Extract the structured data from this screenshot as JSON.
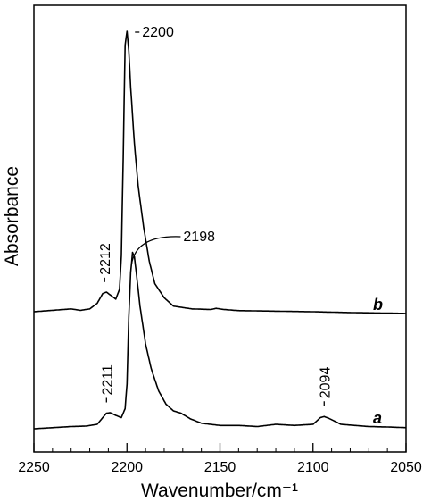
{
  "chart_data": {
    "type": "line",
    "xlabel": "Wavenumber/cm⁻¹",
    "ylabel": "Absorbance",
    "xlim": [
      2250,
      2050
    ],
    "x_reversed": true,
    "x_ticks": [
      2250,
      2200,
      2150,
      2100,
      2050
    ],
    "y_ticks_shown": false,
    "grid": false,
    "series": [
      {
        "name": "a",
        "points": [
          [
            2250,
            0.0
          ],
          [
            2240,
            0.005
          ],
          [
            2230,
            0.01
          ],
          [
            2222,
            0.012
          ],
          [
            2216,
            0.02
          ],
          [
            2213,
            0.05
          ],
          [
            2211,
            0.07
          ],
          [
            2209,
            0.072
          ],
          [
            2206,
            0.06
          ],
          [
            2203,
            0.05
          ],
          [
            2201,
            0.09
          ],
          [
            2200,
            0.2
          ],
          [
            2199,
            0.5
          ],
          [
            2198,
            0.7
          ],
          [
            2197,
            0.79
          ],
          [
            2196,
            0.77
          ],
          [
            2195,
            0.7
          ],
          [
            2193,
            0.55
          ],
          [
            2190,
            0.38
          ],
          [
            2187,
            0.27
          ],
          [
            2183,
            0.17
          ],
          [
            2179,
            0.11
          ],
          [
            2175,
            0.08
          ],
          [
            2171,
            0.07
          ],
          [
            2166,
            0.045
          ],
          [
            2160,
            0.025
          ],
          [
            2150,
            0.015
          ],
          [
            2140,
            0.015
          ],
          [
            2130,
            0.01
          ],
          [
            2120,
            0.02
          ],
          [
            2110,
            0.015
          ],
          [
            2100,
            0.02
          ],
          [
            2096,
            0.05
          ],
          [
            2094,
            0.055
          ],
          [
            2091,
            0.045
          ],
          [
            2085,
            0.02
          ],
          [
            2070,
            0.01
          ],
          [
            2060,
            0.008
          ],
          [
            2050,
            0.005
          ]
        ]
      },
      {
        "name": "b",
        "points": [
          [
            2250,
            0.0
          ],
          [
            2240,
            0.005
          ],
          [
            2230,
            0.01
          ],
          [
            2225,
            0.005
          ],
          [
            2220,
            0.01
          ],
          [
            2216,
            0.03
          ],
          [
            2213,
            0.065
          ],
          [
            2211,
            0.07
          ],
          [
            2209,
            0.06
          ],
          [
            2206,
            0.045
          ],
          [
            2204,
            0.08
          ],
          [
            2203,
            0.2
          ],
          [
            2202,
            0.55
          ],
          [
            2201,
            0.95
          ],
          [
            2200,
            1.0
          ],
          [
            2199,
            0.93
          ],
          [
            2198,
            0.8
          ],
          [
            2196,
            0.6
          ],
          [
            2194,
            0.45
          ],
          [
            2191,
            0.3
          ],
          [
            2188,
            0.18
          ],
          [
            2185,
            0.1
          ],
          [
            2180,
            0.05
          ],
          [
            2175,
            0.02
          ],
          [
            2165,
            0.01
          ],
          [
            2155,
            0.008
          ],
          [
            2152,
            0.012
          ],
          [
            2148,
            0.008
          ],
          [
            2140,
            0.004
          ],
          [
            2120,
            0.002
          ],
          [
            2100,
            0.0
          ],
          [
            2080,
            -0.003
          ],
          [
            2060,
            -0.005
          ],
          [
            2050,
            -0.006
          ]
        ]
      }
    ],
    "annotations": [
      {
        "text": "2200",
        "series": "b",
        "x": 2200,
        "style": "dash"
      },
      {
        "text": "2212",
        "series": "b",
        "x": 2212,
        "style": "dash-rotated"
      },
      {
        "text": "2198",
        "series": "a",
        "x": 2198,
        "style": "leader"
      },
      {
        "text": "2211",
        "series": "a",
        "x": 2211,
        "style": "dash-rotated"
      },
      {
        "text": "2094",
        "series": "a",
        "x": 2094,
        "style": "dash-rotated"
      }
    ],
    "curve_labels": [
      "b",
      "a"
    ]
  }
}
